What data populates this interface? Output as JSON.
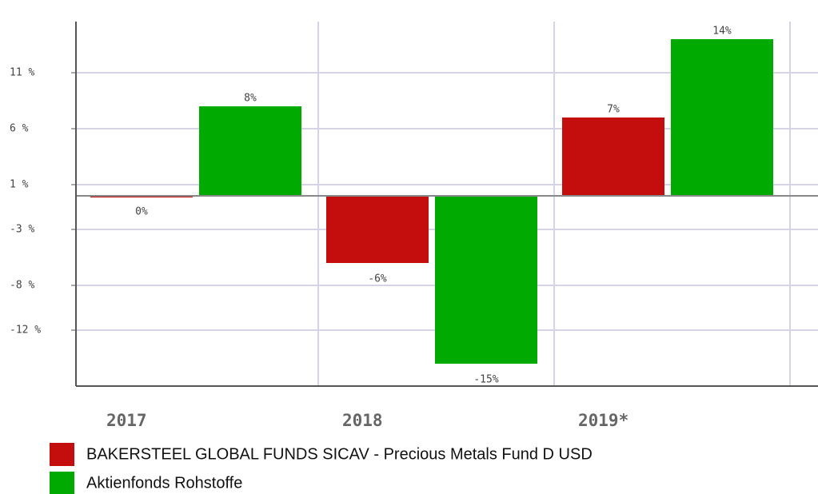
{
  "chart_data": {
    "type": "bar",
    "categories": [
      "2017",
      "2018",
      "2019*"
    ],
    "series": [
      {
        "name": "BAKERSTEEL GLOBAL FUNDS SICAV - Precious Metals Fund D USD",
        "color": "#c40e0e",
        "values": [
          0,
          -6,
          7
        ],
        "value_labels": [
          "0%",
          "-6%",
          "7%"
        ]
      },
      {
        "name": "Aktienfonds Rohstoffe",
        "color": "#00aa00",
        "values": [
          8,
          -15,
          14
        ],
        "value_labels": [
          "8%",
          "-15%",
          "14%"
        ]
      }
    ],
    "ylim": [
      -17,
      16
    ],
    "yticks": [
      {
        "value": 11,
        "label": "11 %"
      },
      {
        "value": 6,
        "label": "6 %"
      },
      {
        "value": 1,
        "label": "1 %"
      },
      {
        "value": -3,
        "label": "-3 %"
      },
      {
        "value": -8,
        "label": "-8 %"
      },
      {
        "value": -12,
        "label": "-12 %"
      }
    ],
    "grid": true
  }
}
